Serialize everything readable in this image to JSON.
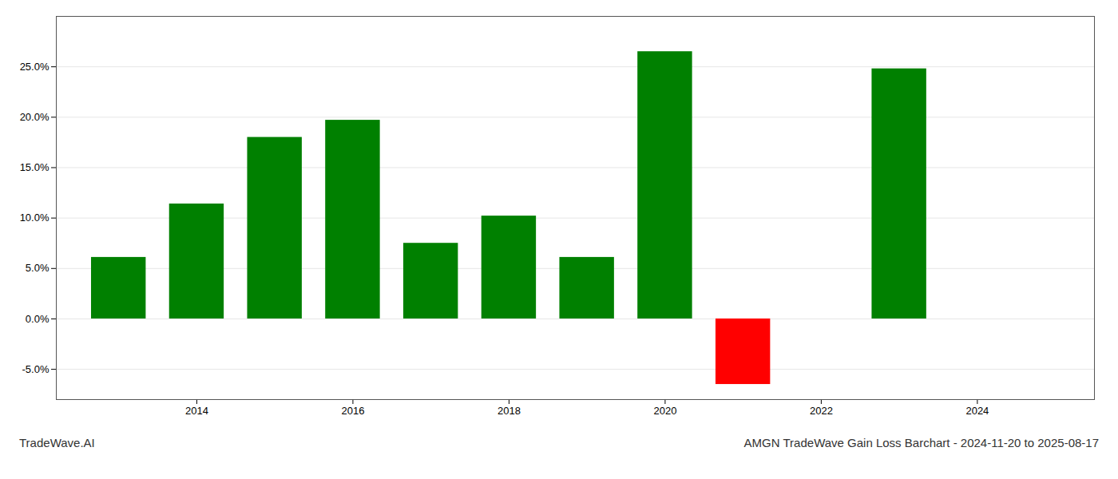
{
  "chart_data": {
    "type": "bar",
    "title": "AMGN TradeWave Gain Loss Barchart - 2024-11-20 to 2025-08-17",
    "annotations": [
      "TradeWave.AI"
    ],
    "x": [
      2013,
      2014,
      2015,
      2016,
      2017,
      2018,
      2019,
      2020,
      2021,
      2023
    ],
    "values": [
      0.061,
      0.114,
      0.18,
      0.197,
      0.075,
      0.102,
      0.061,
      0.265,
      -0.065,
      0.248
    ],
    "colors": [
      "#008000",
      "#008000",
      "#008000",
      "#008000",
      "#008000",
      "#008000",
      "#008000",
      "#008000",
      "#ff0000",
      "#008000"
    ],
    "xlim": [
      2012.2,
      2025.5
    ],
    "xticks": [
      2014,
      2016,
      2018,
      2020,
      2022,
      2024
    ],
    "ylim": [
      -0.08,
      0.3
    ],
    "yticks": [
      {
        "value": -0.05,
        "label": "-5.0%"
      },
      {
        "value": 0.0,
        "label": "0.0%"
      },
      {
        "value": 0.05,
        "label": "5.0%"
      },
      {
        "value": 0.1,
        "label": "10.0%"
      },
      {
        "value": 0.15,
        "label": "15.0%"
      },
      {
        "value": 0.2,
        "label": "20.0%"
      },
      {
        "value": 0.25,
        "label": "25.0%"
      }
    ],
    "grid": true
  }
}
